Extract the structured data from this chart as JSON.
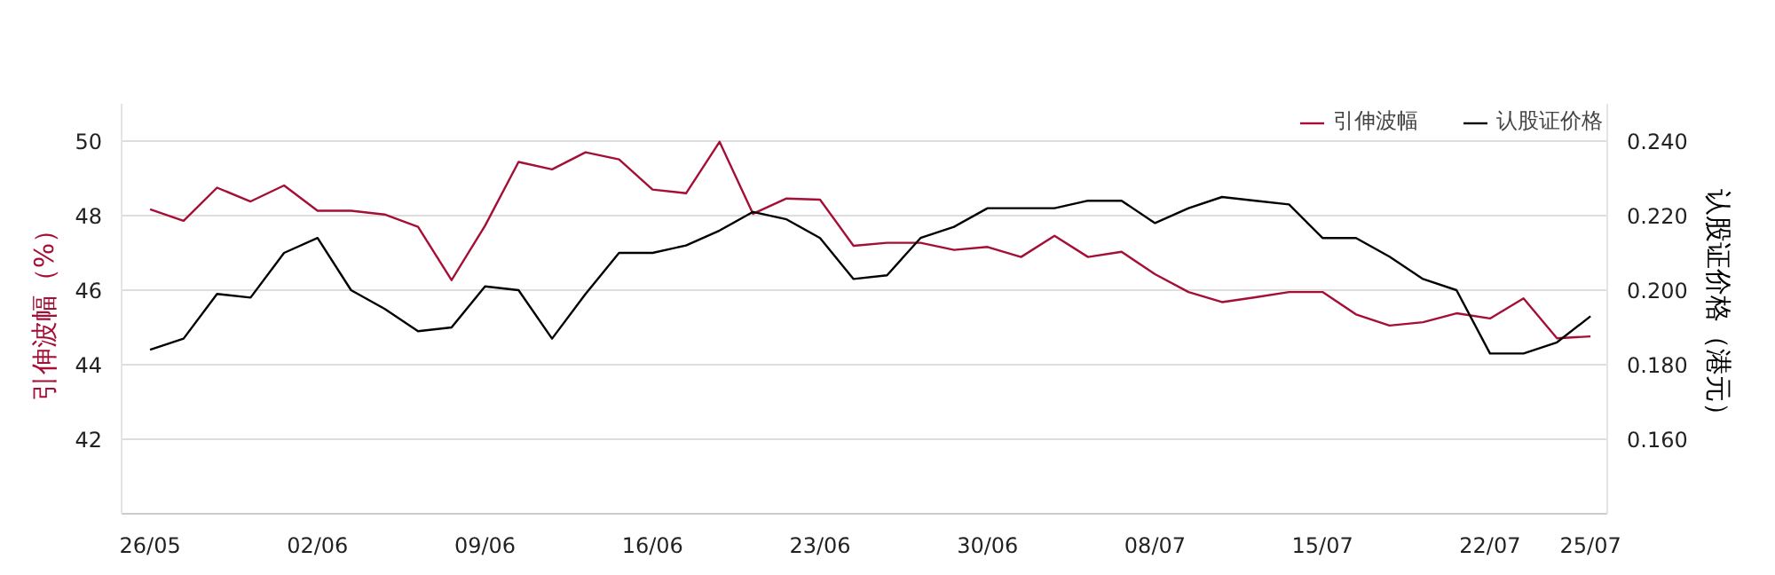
{
  "chart_data": {
    "type": "line",
    "categories": [
      "26/05",
      null,
      null,
      null,
      null,
      "02/06",
      null,
      null,
      null,
      null,
      "09/06",
      null,
      null,
      null,
      null,
      "16/06",
      null,
      null,
      null,
      null,
      "23/06",
      null,
      null,
      null,
      null,
      "30/06",
      null,
      null,
      null,
      null,
      "08/07",
      null,
      null,
      null,
      null,
      "15/07",
      null,
      null,
      null,
      null,
      "22/07",
      null,
      null,
      "25/07"
    ],
    "ylabel": "引伸波幅（%）",
    "y2label": "认股证价格（港元）",
    "ylim": [
      40,
      51
    ],
    "yticks": [
      42,
      44,
      46,
      48,
      50
    ],
    "y2lim": [
      0.14,
      0.25
    ],
    "y2ticks": [
      {
        "value": 0.16,
        "label": "0.160"
      },
      {
        "value": 0.18,
        "label": "0.180"
      },
      {
        "value": 0.2,
        "label": "0.200"
      },
      {
        "value": 0.22,
        "label": "0.220"
      },
      {
        "value": 0.24,
        "label": "0.240"
      }
    ],
    "grid": "y",
    "legend": "top right",
    "marker": "none",
    "line_style": "solid",
    "series": [
      {
        "name": "引伸波幅",
        "color": "#a50e35",
        "values": [
          48.17,
          47.86,
          48.75,
          48.38,
          48.81,
          48.13,
          48.13,
          48.03,
          47.7,
          46.27,
          47.73,
          49.44,
          49.24,
          49.7,
          49.51,
          48.7,
          48.6,
          49.98,
          48.05,
          48.46,
          48.43,
          47.19,
          47.27,
          47.27,
          47.08,
          47.16,
          46.89,
          47.46,
          46.89,
          47.03,
          46.43,
          45.95,
          45.68,
          45.81,
          45.95,
          45.95,
          45.35,
          45.05,
          45.14,
          45.38,
          45.24,
          45.78,
          44.71,
          44.76
        ]
      },
      {
        "name": "认股证价格",
        "color": "#000000",
        "axis": "y2",
        "values": [
          0.184,
          0.187,
          0.199,
          0.198,
          0.21,
          0.214,
          0.2,
          0.195,
          0.189,
          0.19,
          0.201,
          0.2,
          0.187,
          0.199,
          0.21,
          0.21,
          0.212,
          0.216,
          0.221,
          0.219,
          0.214,
          0.203,
          0.204,
          0.214,
          0.217,
          0.222,
          0.222,
          0.222,
          0.224,
          0.224,
          0.218,
          0.222,
          0.225,
          0.224,
          0.223,
          0.214,
          0.214,
          0.209,
          0.203,
          0.2,
          0.183,
          0.183,
          0.186,
          0.193
        ]
      }
    ]
  }
}
